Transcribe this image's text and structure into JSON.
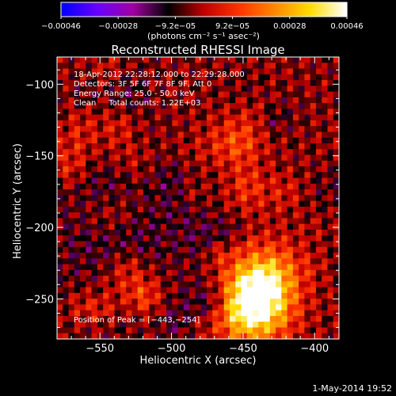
{
  "chart_data": {
    "type": "heatmap",
    "title": "Reconstructed RHESSI Image",
    "xlabel": "Heliocentric X (arcsec)",
    "ylabel": "Heliocentric Y (arcsec)",
    "xlim": [
      -580,
      -383
    ],
    "ylim": [
      -278,
      -81
    ],
    "x_ticks": [
      -550,
      -500,
      -450,
      -400
    ],
    "y_ticks": [
      -100,
      -150,
      -200,
      -250
    ],
    "x_tick_labels": [
      "−550",
      "−500",
      "−450",
      "−400"
    ],
    "y_tick_labels": [
      "−100",
      "−150",
      "−200",
      "−250"
    ],
    "colorbar": {
      "range": [
        -0.00046,
        0.00046
      ],
      "tick_labels": [
        "−0.00046",
        "−0.00028",
        "−9.2e−05",
        "9.2e−05",
        "0.00028",
        "0.00046"
      ],
      "units_label": "(photons cm⁻² s⁻¹ asec⁻²)",
      "colors": [
        "#0000ff",
        "#6a00ff",
        "#a000a0",
        "#000000",
        "#c00000",
        "#ff3300",
        "#ff8800",
        "#ffdd00",
        "#ffffff"
      ]
    },
    "annotations": [
      "18-Apr-2012 22:28:12.000 to 22:29:28.000",
      "Detectors: 3F 5F 6F 7F 8F 9F, Att 0",
      "Energy Range: 25.0 - 50.0 keV",
      "Clean     Total counts: 1.22E+03"
    ],
    "peak_label": "Position of Peak = [−443,−254]",
    "peak": [
      -443,
      -254
    ]
  },
  "footer": {
    "date": "1-May-2014 19:52"
  }
}
